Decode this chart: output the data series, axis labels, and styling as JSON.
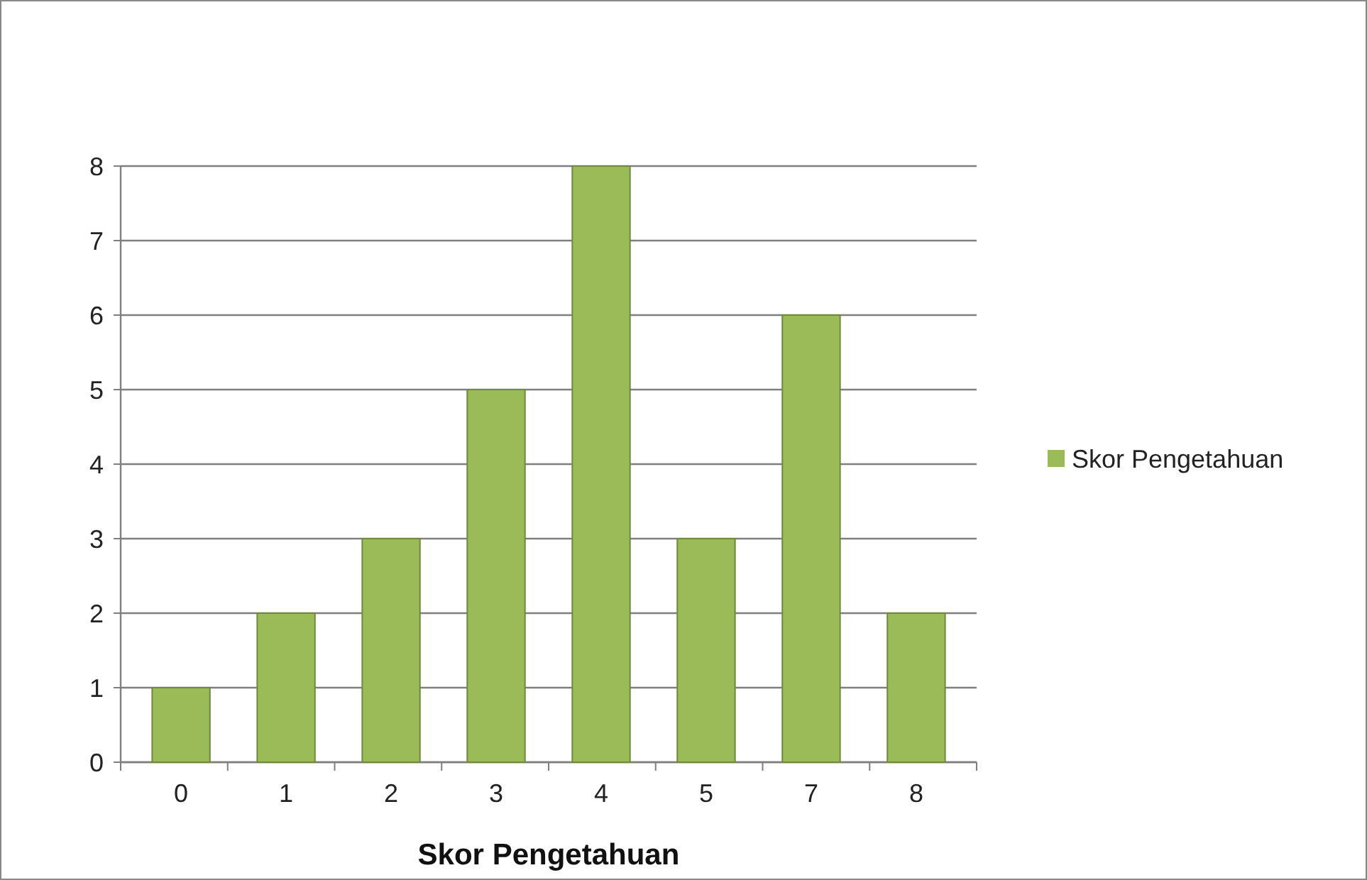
{
  "chart_data": {
    "type": "bar",
    "xlabel": "Skor Pengetahuan",
    "categories": [
      "0",
      "1",
      "2",
      "3",
      "4",
      "5",
      "7",
      "8"
    ],
    "series": [
      {
        "name": "Skor Pengetahuan",
        "color": "#9bbb59",
        "values": [
          1,
          2,
          3,
          5,
          8,
          3,
          6,
          2
        ]
      }
    ],
    "ylim": [
      0,
      8
    ],
    "yticks": [
      0,
      1,
      2,
      3,
      4,
      5,
      6,
      7,
      8
    ],
    "grid": "y",
    "legend": "right"
  }
}
